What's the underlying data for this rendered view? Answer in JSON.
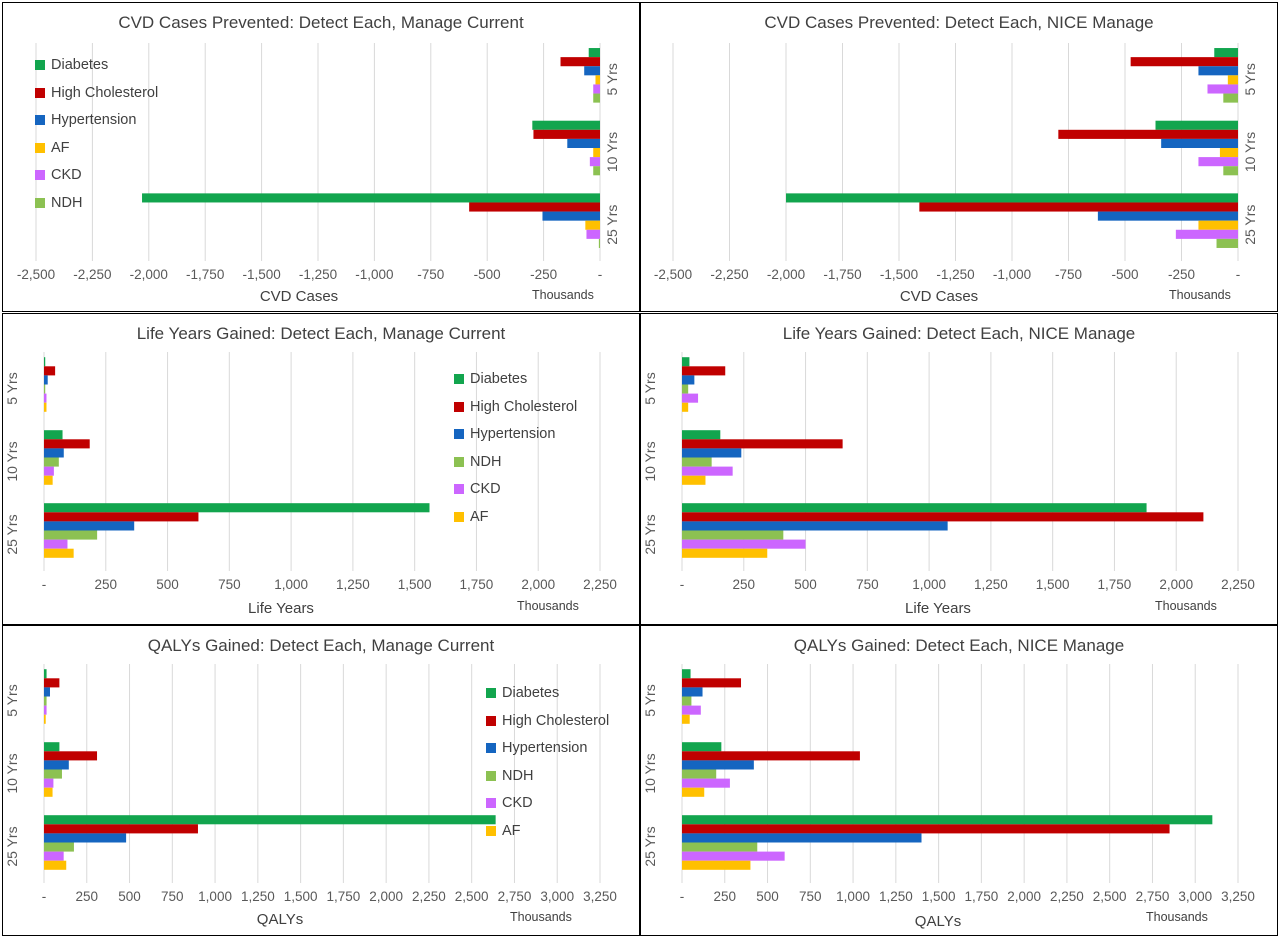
{
  "colors": {
    "Diabetes": "#12a54e",
    "High Cholesterol": "#c00000",
    "Hypertension": "#1565c0",
    "AF": "#ffc000",
    "CKD": "#cc66ff",
    "NDH": "#8cc152"
  },
  "chart_data": [
    {
      "type": "bar",
      "orientation": "horizontal",
      "title": "CVD Cases Prevented: Detect Each, Manage Current",
      "xlabel": "CVD Cases",
      "unit_label": "Thousands",
      "xlim": [
        -2500,
        0
      ],
      "xticks": [
        -2500,
        -2250,
        -2000,
        -1750,
        -1500,
        -1250,
        -1000,
        -750,
        -500,
        -250,
        0
      ],
      "xtick_labels": [
        "-2,500",
        "-2,250",
        "-2,000",
        "-1,750",
        "-1,500",
        "-1,250",
        "-1,000",
        "-750",
        "-500",
        "-250",
        "-"
      ],
      "categories": [
        "5 Yrs",
        "10 Yrs",
        "25 Yrs"
      ],
      "category_axis": "right",
      "legend_position": "left",
      "series": [
        {
          "name": "Diabetes",
          "values": [
            -50,
            -300,
            -2030
          ]
        },
        {
          "name": "High Cholesterol",
          "values": [
            -175,
            -295,
            -580
          ]
        },
        {
          "name": "Hypertension",
          "values": [
            -70,
            -145,
            -255
          ]
        },
        {
          "name": "AF",
          "values": [
            -20,
            -30,
            -65
          ]
        },
        {
          "name": "CKD",
          "values": [
            -30,
            -45,
            -60
          ]
        },
        {
          "name": "NDH",
          "values": [
            -30,
            -30,
            -5
          ]
        }
      ]
    },
    {
      "type": "bar",
      "orientation": "horizontal",
      "title": "CVD Cases Prevented: Detect Each, NICE Manage",
      "xlabel": "CVD Cases",
      "unit_label": "Thousands",
      "xlim": [
        -2500,
        0
      ],
      "xticks": [
        -2500,
        -2250,
        -2000,
        -1750,
        -1500,
        -1250,
        -1000,
        -750,
        -500,
        -250,
        0
      ],
      "xtick_labels": [
        "-2,500",
        "-2,250",
        "-2,000",
        "-1,750",
        "-1,500",
        "-1,250",
        "-1,000",
        "-750",
        "-500",
        "-250",
        "-"
      ],
      "categories": [
        "5 Yrs",
        "10 Yrs",
        "25 Yrs"
      ],
      "category_axis": "right",
      "series": [
        {
          "name": "Diabetes",
          "values": [
            -105,
            -365,
            -2000
          ]
        },
        {
          "name": "High Cholesterol",
          "values": [
            -475,
            -795,
            -1410
          ]
        },
        {
          "name": "Hypertension",
          "values": [
            -175,
            -340,
            -620
          ]
        },
        {
          "name": "AF",
          "values": [
            -45,
            -80,
            -175
          ]
        },
        {
          "name": "CKD",
          "values": [
            -135,
            -175,
            -275
          ]
        },
        {
          "name": "NDH",
          "values": [
            -65,
            -65,
            -95
          ]
        }
      ]
    },
    {
      "type": "bar",
      "orientation": "horizontal",
      "title": "Life Years Gained: Detect Each, Manage Current",
      "xlabel": "Life Years",
      "unit_label": "Thousands",
      "xlim": [
        0,
        2250
      ],
      "xticks": [
        0,
        250,
        500,
        750,
        1000,
        1250,
        1500,
        1750,
        2000,
        2250
      ],
      "xtick_labels": [
        "-",
        "250",
        "500",
        "750",
        "1,000",
        "1,250",
        "1,500",
        "1,750",
        "2,000",
        "2,250"
      ],
      "categories": [
        "5 Yrs",
        "10 Yrs",
        "25 Yrs"
      ],
      "category_axis": "left",
      "legend_position": "right",
      "series": [
        {
          "name": "Diabetes",
          "values": [
            5,
            75,
            1560
          ]
        },
        {
          "name": "High Cholesterol",
          "values": [
            45,
            185,
            625
          ]
        },
        {
          "name": "Hypertension",
          "values": [
            15,
            80,
            365
          ]
        },
        {
          "name": "NDH",
          "values": [
            5,
            60,
            215
          ]
        },
        {
          "name": "CKD",
          "values": [
            10,
            40,
            95
          ]
        },
        {
          "name": "AF",
          "values": [
            10,
            35,
            120
          ]
        }
      ]
    },
    {
      "type": "bar",
      "orientation": "horizontal",
      "title": "Life Years Gained: Detect Each, NICE Manage",
      "xlabel": "Life Years",
      "unit_label": "Thousands",
      "xlim": [
        0,
        2250
      ],
      "xticks": [
        0,
        250,
        500,
        750,
        1000,
        1250,
        1500,
        1750,
        2000,
        2250
      ],
      "xtick_labels": [
        "-",
        "250",
        "500",
        "750",
        "1,000",
        "1,250",
        "1,500",
        "1,750",
        "2,000",
        "2,250"
      ],
      "categories": [
        "5 Yrs",
        "10 Yrs",
        "25 Yrs"
      ],
      "category_axis": "left",
      "series": [
        {
          "name": "Diabetes",
          "values": [
            30,
            155,
            1880
          ]
        },
        {
          "name": "High Cholesterol",
          "values": [
            175,
            650,
            2110
          ]
        },
        {
          "name": "Hypertension",
          "values": [
            50,
            240,
            1075
          ]
        },
        {
          "name": "NDH",
          "values": [
            25,
            120,
            410
          ]
        },
        {
          "name": "CKD",
          "values": [
            65,
            205,
            500
          ]
        },
        {
          "name": "AF",
          "values": [
            25,
            95,
            345
          ]
        }
      ]
    },
    {
      "type": "bar",
      "orientation": "horizontal",
      "title": "QALYs Gained: Detect Each, Manage Current",
      "xlabel": "QALYs",
      "unit_label": "Thousands",
      "xlim": [
        0,
        3250
      ],
      "xticks": [
        0,
        250,
        500,
        750,
        1000,
        1250,
        1500,
        1750,
        2000,
        2250,
        2500,
        2750,
        3000,
        3250
      ],
      "xtick_labels": [
        "-",
        "250",
        "500",
        "750",
        "1,000",
        "1,250",
        "1,500",
        "1,750",
        "2,000",
        "2,250",
        "2,500",
        "2,750",
        "3,000",
        "3,250"
      ],
      "categories": [
        "5 Yrs",
        "10 Yrs",
        "25 Yrs"
      ],
      "category_axis": "left",
      "legend_position": "right",
      "series": [
        {
          "name": "Diabetes",
          "values": [
            15,
            90,
            2640
          ]
        },
        {
          "name": "High Cholesterol",
          "values": [
            90,
            310,
            900
          ]
        },
        {
          "name": "Hypertension",
          "values": [
            35,
            145,
            480
          ]
        },
        {
          "name": "NDH",
          "values": [
            15,
            105,
            175
          ]
        },
        {
          "name": "CKD",
          "values": [
            15,
            55,
            115
          ]
        },
        {
          "name": "AF",
          "values": [
            10,
            50,
            130
          ]
        }
      ]
    },
    {
      "type": "bar",
      "orientation": "horizontal",
      "title": "QALYs Gained: Detect Each, NICE Manage",
      "xlabel": "QALYs",
      "unit_label": "Thousands",
      "xlim": [
        0,
        3250
      ],
      "xticks": [
        0,
        250,
        500,
        750,
        1000,
        1250,
        1500,
        1750,
        2000,
        2250,
        2500,
        2750,
        3000,
        3250
      ],
      "xtick_labels": [
        "-",
        "250",
        "500",
        "750",
        "1,000",
        "1,250",
        "1,500",
        "1,750",
        "2,000",
        "2,250",
        "2,500",
        "2,750",
        "3,000",
        "3,250"
      ],
      "categories": [
        "5 Yrs",
        "10 Yrs",
        "25 Yrs"
      ],
      "category_axis": "left",
      "series": [
        {
          "name": "Diabetes",
          "values": [
            50,
            230,
            3100
          ]
        },
        {
          "name": "High Cholesterol",
          "values": [
            345,
            1040,
            2850
          ]
        },
        {
          "name": "Hypertension",
          "values": [
            120,
            420,
            1400
          ]
        },
        {
          "name": "NDH",
          "values": [
            55,
            200,
            440
          ]
        },
        {
          "name": "CKD",
          "values": [
            110,
            280,
            600
          ]
        },
        {
          "name": "AF",
          "values": [
            45,
            130,
            400
          ]
        }
      ]
    }
  ]
}
